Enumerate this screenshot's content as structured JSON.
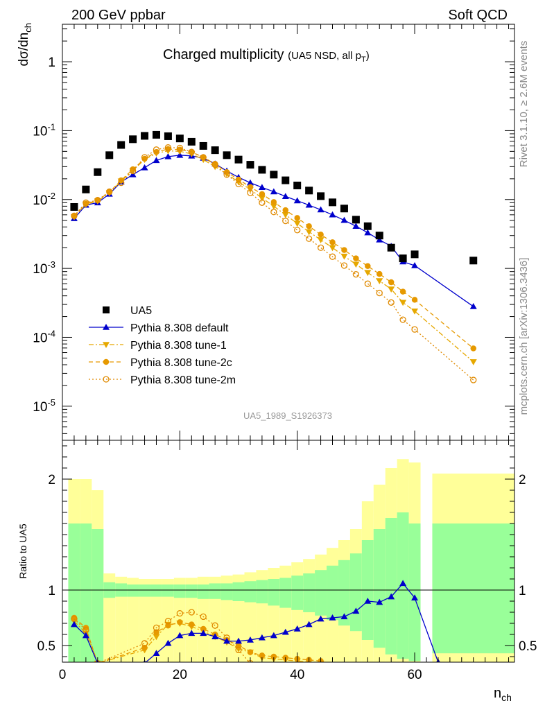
{
  "header": {
    "left": "200 GeV ppbar",
    "right": "Soft QCD"
  },
  "side_labels": {
    "top": "Rivet 3.1.10, ≥ 2.6M events",
    "bottom": "mcplots.cern.ch [arXiv:1306.3436]"
  },
  "watermark": "UA5_1989_S1926373",
  "chart_data": [
    {
      "type": "scatter",
      "title_main": "Charged multiplicity",
      "title_sub_prefix": "(UA5 NSD, all p",
      "title_sub_subscript": "T",
      "title_sub_suffix": ")",
      "ylabel": "dσ/dn",
      "ylabel_subscript": "ch",
      "yscale": "log",
      "xlim": [
        0,
        77
      ],
      "ylim": [
        3.2e-06,
        3.5
      ],
      "y_tick_labels": [
        "1",
        "10^-1",
        "10^-2",
        "10^-3",
        "10^-4",
        "10^-5"
      ],
      "legend_position": "lower-left",
      "series": [
        {
          "name": "UA5",
          "color": "#000000",
          "marker": "square",
          "line": "none",
          "x": [
            2,
            4,
            6,
            8,
            10,
            12,
            14,
            16,
            18,
            20,
            22,
            24,
            26,
            28,
            30,
            32,
            34,
            36,
            38,
            40,
            42,
            44,
            46,
            48,
            50,
            52,
            54,
            56,
            58,
            60,
            70
          ],
          "y": [
            0.0078,
            0.014,
            0.025,
            0.044,
            0.062,
            0.075,
            0.084,
            0.087,
            0.083,
            0.077,
            0.069,
            0.06,
            0.052,
            0.044,
            0.038,
            0.032,
            0.027,
            0.023,
            0.019,
            0.016,
            0.0135,
            0.0112,
            0.0091,
            0.0074,
            0.0051,
            0.0041,
            0.003,
            0.002,
            0.0014,
            0.0016,
            0.0013
          ]
        },
        {
          "name": "Pythia 8.308 default",
          "color": "#0000cc",
          "marker": "triangle-up",
          "line": "solid",
          "x": [
            2,
            4,
            6,
            8,
            10,
            12,
            14,
            16,
            18,
            20,
            22,
            24,
            26,
            28,
            30,
            32,
            34,
            36,
            38,
            40,
            42,
            44,
            46,
            48,
            50,
            52,
            54,
            56,
            58,
            60,
            70
          ],
          "y": [
            0.0053,
            0.0083,
            0.009,
            0.012,
            0.018,
            0.023,
            0.029,
            0.037,
            0.042,
            0.044,
            0.043,
            0.04,
            0.033,
            0.026,
            0.021,
            0.0175,
            0.015,
            0.013,
            0.0111,
            0.0096,
            0.0083,
            0.0071,
            0.006,
            0.005,
            0.0041,
            0.0033,
            0.0026,
            0.0021,
            0.00125,
            0.0011,
            0.00028
          ]
        },
        {
          "name": "Pythia 8.308 tune-1",
          "color": "#e6a800",
          "marker": "triangle-down",
          "line": "dashdot",
          "x": [
            2,
            4,
            6,
            8,
            10,
            12,
            14,
            16,
            18,
            20,
            22,
            24,
            26,
            28,
            30,
            32,
            34,
            36,
            38,
            40,
            42,
            44,
            46,
            48,
            50,
            52,
            54,
            56,
            58,
            60,
            70
          ],
          "y": [
            0.0056,
            0.0085,
            0.0095,
            0.0125,
            0.0185,
            0.0265,
            0.038,
            0.047,
            0.051,
            0.05,
            0.046,
            0.038,
            0.03,
            0.0235,
            0.018,
            0.014,
            0.0105,
            0.008,
            0.006,
            0.0045,
            0.0034,
            0.0026,
            0.002,
            0.0015,
            0.00115,
            0.00087,
            0.00066,
            0.0005,
            0.00032,
            0.00024,
            4.4e-05
          ]
        },
        {
          "name": "Pythia 8.308 tune-2c",
          "color": "#e69900",
          "marker": "circle",
          "line": "dashed",
          "x": [
            2,
            4,
            6,
            8,
            10,
            12,
            14,
            16,
            18,
            20,
            22,
            24,
            26,
            28,
            30,
            32,
            34,
            36,
            38,
            40,
            42,
            44,
            46,
            48,
            50,
            52,
            54,
            56,
            58,
            60,
            70
          ],
          "y": [
            0.0057,
            0.0087,
            0.0097,
            0.0128,
            0.019,
            0.0275,
            0.039,
            0.049,
            0.054,
            0.053,
            0.049,
            0.041,
            0.033,
            0.025,
            0.0195,
            0.0152,
            0.012,
            0.0092,
            0.007,
            0.0054,
            0.0041,
            0.0031,
            0.0024,
            0.00185,
            0.0014,
            0.00108,
            0.00083,
            0.00063,
            0.00046,
            0.00035,
            6.9e-05
          ]
        },
        {
          "name": "Pythia 8.308 tune-2m",
          "color": "#e08a00",
          "marker": "circle-open",
          "line": "dotted",
          "x": [
            2,
            4,
            6,
            8,
            10,
            12,
            14,
            16,
            18,
            20,
            22,
            24,
            26,
            28,
            30,
            32,
            34,
            36,
            38,
            40,
            42,
            44,
            46,
            48,
            50,
            52,
            54,
            56,
            58,
            60,
            70
          ],
          "y": [
            0.0058,
            0.009,
            0.0098,
            0.013,
            0.0175,
            0.026,
            0.041,
            0.053,
            0.057,
            0.056,
            0.049,
            0.041,
            0.032,
            0.023,
            0.0168,
            0.0125,
            0.009,
            0.0066,
            0.0049,
            0.0036,
            0.0027,
            0.002,
            0.00148,
            0.0011,
            0.00082,
            0.0006,
            0.00044,
            0.00032,
            0.00018,
            0.00013,
            2.4e-05
          ]
        }
      ]
    },
    {
      "type": "line",
      "ylabel": "Ratio to UA5",
      "xlabel": "n",
      "xlabel_subscript": "ch",
      "xlim": [
        0,
        77
      ],
      "ylim": [
        0.35,
        2.35
      ],
      "x_ticks": [
        0,
        20,
        40,
        60
      ],
      "y_ticks": [
        0.5,
        1,
        2
      ],
      "y_tick_labels": [
        "0.5",
        "1",
        "2"
      ],
      "reference_line": 1,
      "bands": {
        "x_edges": [
          1,
          3,
          5,
          7,
          9,
          11,
          13,
          15,
          17,
          19,
          21,
          23,
          25,
          27,
          29,
          31,
          33,
          35,
          37,
          39,
          41,
          43,
          45,
          47,
          49,
          51,
          53,
          55,
          57,
          59,
          61,
          63,
          77
        ],
        "outer_color": "#ffff99",
        "inner_color": "#99ff99",
        "outer_upper": [
          2.0,
          2.0,
          1.9,
          1.15,
          1.12,
          1.11,
          1.1,
          1.1,
          1.1,
          1.11,
          1.11,
          1.12,
          1.12,
          1.13,
          1.14,
          1.16,
          1.18,
          1.2,
          1.22,
          1.25,
          1.28,
          1.32,
          1.38,
          1.45,
          1.55,
          1.8,
          1.95,
          2.1,
          2.18,
          2.15,
          null,
          2.05
        ],
        "outer_lower": [
          0.35,
          0.35,
          0.35,
          0.35,
          0.35,
          0.35,
          0.35,
          0.35,
          0.35,
          0.35,
          0.35,
          0.35,
          0.35,
          0.35,
          0.35,
          0.35,
          0.35,
          0.35,
          0.35,
          0.35,
          0.35,
          0.35,
          0.35,
          0.35,
          0.35,
          0.35,
          0.35,
          0.35,
          0.35,
          0.35,
          null,
          0.35
        ],
        "inner_upper": [
          1.6,
          1.6,
          1.55,
          1.07,
          1.06,
          1.05,
          1.05,
          1.05,
          1.05,
          1.05,
          1.05,
          1.05,
          1.06,
          1.06,
          1.07,
          1.08,
          1.09,
          1.1,
          1.11,
          1.13,
          1.15,
          1.18,
          1.22,
          1.27,
          1.33,
          1.45,
          1.55,
          1.65,
          1.7,
          1.6,
          null,
          1.6
        ],
        "inner_lower": [
          0.35,
          0.35,
          0.35,
          0.93,
          0.94,
          0.94,
          0.94,
          0.94,
          0.94,
          0.93,
          0.93,
          0.92,
          0.92,
          0.91,
          0.9,
          0.89,
          0.88,
          0.86,
          0.84,
          0.82,
          0.8,
          0.77,
          0.73,
          0.68,
          0.63,
          0.55,
          0.48,
          0.42,
          0.38,
          0.36,
          null,
          0.43
        ]
      },
      "series": [
        {
          "name": "Pythia 8.308 default",
          "color": "#0000cc",
          "marker": "triangle-up",
          "line": "solid",
          "x": [
            2,
            4,
            6,
            14,
            16,
            18,
            20,
            22,
            24,
            26,
            28,
            30,
            32,
            34,
            36,
            38,
            40,
            42,
            44,
            46,
            48,
            50,
            52,
            54,
            56,
            58,
            60,
            64
          ],
          "y": [
            0.69,
            0.59,
            0.34,
            0.34,
            0.43,
            0.52,
            0.59,
            0.61,
            0.61,
            0.58,
            0.54,
            0.54,
            0.55,
            0.57,
            0.59,
            0.62,
            0.65,
            0.69,
            0.74,
            0.75,
            0.76,
            0.81,
            0.9,
            0.89,
            0.94,
            1.06,
            0.93,
            0.35
          ]
        },
        {
          "name": "Pythia 8.308 tune-1",
          "color": "#e6a800",
          "marker": "triangle-down",
          "line": "dashdot",
          "x": [
            2,
            4,
            6,
            14,
            16,
            18,
            20,
            22,
            24,
            26,
            28,
            30,
            32,
            34,
            36,
            38,
            40,
            42,
            44
          ],
          "y": [
            0.72,
            0.61,
            0.34,
            0.46,
            0.58,
            0.69,
            0.7,
            0.67,
            0.63,
            0.58,
            0.53,
            0.47,
            0.44,
            0.39,
            0.38,
            0.37,
            0.36,
            0.35,
            0.34
          ]
        },
        {
          "name": "Pythia 8.308 tune-2c",
          "color": "#e69900",
          "marker": "circle",
          "line": "dashed",
          "x": [
            2,
            4,
            6,
            14,
            16,
            18,
            20,
            22,
            24,
            26,
            28,
            30,
            32,
            34,
            36,
            38,
            40,
            42,
            44
          ],
          "y": [
            0.75,
            0.66,
            0.34,
            0.48,
            0.62,
            0.68,
            0.71,
            0.69,
            0.65,
            0.6,
            0.55,
            0.5,
            0.44,
            0.41,
            0.4,
            0.39,
            0.38,
            0.37,
            0.36
          ]
        },
        {
          "name": "Pythia 8.308 tune-2m",
          "color": "#e08a00",
          "marker": "circle-open",
          "line": "dotted",
          "x": [
            2,
            4,
            6,
            14,
            16,
            18,
            20,
            22,
            24,
            26,
            28,
            30,
            32
          ],
          "y": [
            0.74,
            0.64,
            0.34,
            0.52,
            0.66,
            0.72,
            0.79,
            0.8,
            0.76,
            0.68,
            0.57,
            0.46,
            0.34
          ]
        }
      ]
    }
  ]
}
